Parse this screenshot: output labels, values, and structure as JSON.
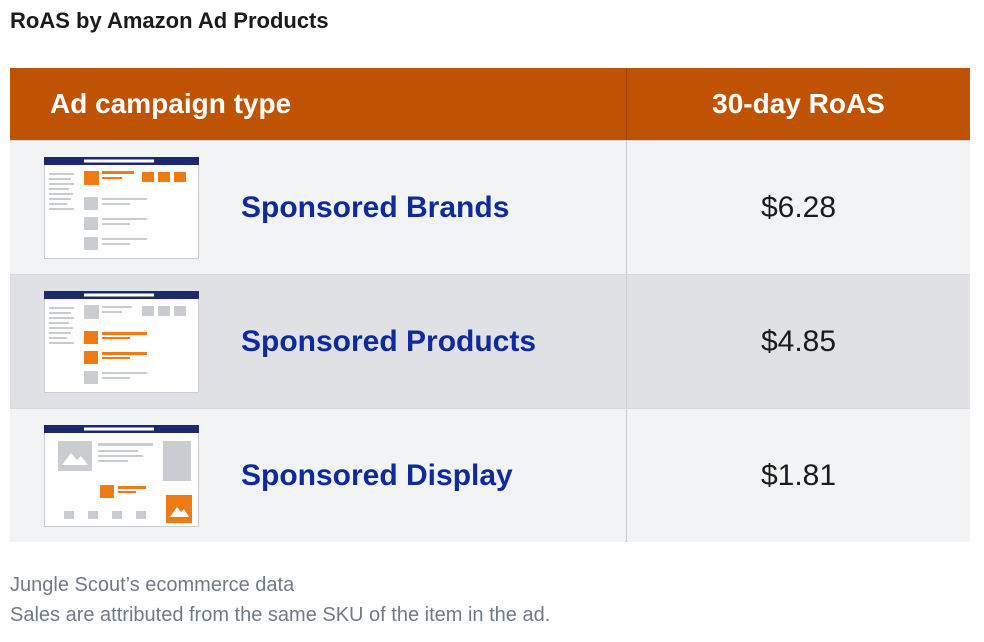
{
  "title": "RoAS by Amazon Ad Products",
  "chart_data": {
    "type": "table",
    "columns": [
      "Ad campaign type",
      "30-day RoAS"
    ],
    "rows": [
      {
        "ad_type": "Sponsored Brands",
        "roas": "$6.28",
        "value": 6.28,
        "icon": "sponsored-brands-page-icon"
      },
      {
        "ad_type": "Sponsored Products",
        "roas": "$4.85",
        "value": 4.85,
        "icon": "sponsored-products-page-icon"
      },
      {
        "ad_type": "Sponsored Display",
        "roas": "$1.81",
        "value": 1.81,
        "icon": "sponsored-display-page-icon"
      }
    ]
  },
  "notes": [
    "Jungle Scout’s ecommerce data",
    "Sales are attributed from the same SKU of the item in the ad."
  ],
  "colors": {
    "header_bg": "#c05203",
    "label_text": "#0e2a9b",
    "accent_orange": "#f07a14",
    "navy_bar": "#1c2a6b"
  }
}
